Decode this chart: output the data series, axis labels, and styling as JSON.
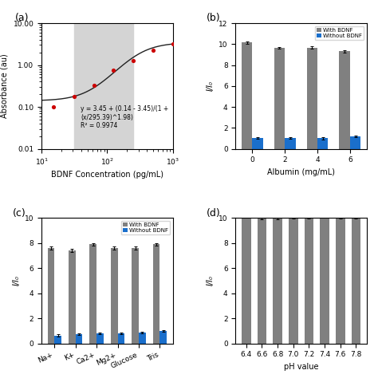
{
  "panel_a": {
    "x_data": [
      15,
      31.25,
      62.5,
      125,
      250,
      500,
      1000
    ],
    "y_data": [
      0.102,
      0.18,
      0.33,
      0.75,
      1.3,
      2.3,
      3.2
    ],
    "xlabel": "BDNF Concentration (pg/mL)",
    "ylabel": "Absorbance (au)",
    "xlim": [
      10,
      1000
    ],
    "ylim": [
      0.01,
      10
    ],
    "equation": "y = 3.45 + (0.14 - 3.45)/(1 +\n(x/295.39)^1.98)\nR² = 0.9974",
    "shade_xmin": 31.25,
    "shade_xmax": 250,
    "dot_color": "#cc0000",
    "line_color": "#222222",
    "shade_color": "#d4d4d4"
  },
  "panel_b": {
    "categories": [
      "0",
      "2",
      "4",
      "6"
    ],
    "with_bdnf": [
      10.15,
      9.65,
      9.65,
      9.3
    ],
    "without_bdnf": [
      1.0,
      1.02,
      1.0,
      1.2
    ],
    "with_err": [
      0.1,
      0.1,
      0.12,
      0.1
    ],
    "without_err": [
      0.08,
      0.08,
      0.1,
      0.1
    ],
    "xlabel": "Albumin (mg/mL)",
    "ylabel": "I/I₀",
    "ylim": [
      0,
      12
    ],
    "yticks": [
      0,
      2,
      4,
      6,
      8,
      10,
      12
    ],
    "gray_color": "#808080",
    "blue_color": "#1a6fcc"
  },
  "panel_c": {
    "categories": [
      "Na+",
      "K+",
      "Ca2+",
      "Mg2+",
      "Glucose",
      "Tris"
    ],
    "with_bdnf": [
      7.6,
      7.4,
      7.9,
      7.6,
      7.6,
      7.9
    ],
    "without_bdnf": [
      0.65,
      0.75,
      0.8,
      0.8,
      0.85,
      1.0
    ],
    "with_err": [
      0.1,
      0.12,
      0.1,
      0.1,
      0.1,
      0.1
    ],
    "without_err": [
      0.07,
      0.07,
      0.07,
      0.07,
      0.07,
      0.07
    ],
    "xlabel": "",
    "ylabel": "I/I₀",
    "ylim": [
      0,
      10
    ],
    "yticks": [
      0,
      2,
      4,
      6,
      8,
      10
    ],
    "gray_color": "#808080",
    "blue_color": "#1a6fcc"
  },
  "panel_d": {
    "categories": [
      "6.4",
      "6.6",
      "6.8",
      "7.0",
      "7.2",
      "7.4",
      "7.6",
      "7.8"
    ],
    "with_bdnf": [
      10.1,
      10.0,
      9.95,
      10.05,
      10.05,
      10.1,
      10.0,
      10.05
    ],
    "with_err": [
      0.1,
      0.1,
      0.08,
      0.12,
      0.1,
      0.1,
      0.08,
      0.1
    ],
    "xlabel": "pH value",
    "ylabel": "I/I₀",
    "ylim": [
      0,
      10
    ],
    "yticks": [
      0,
      2,
      4,
      6,
      8,
      10
    ],
    "gray_color": "#808080"
  },
  "label_fontsize": 7,
  "tick_fontsize": 6.5,
  "panel_label_fontsize": 9
}
